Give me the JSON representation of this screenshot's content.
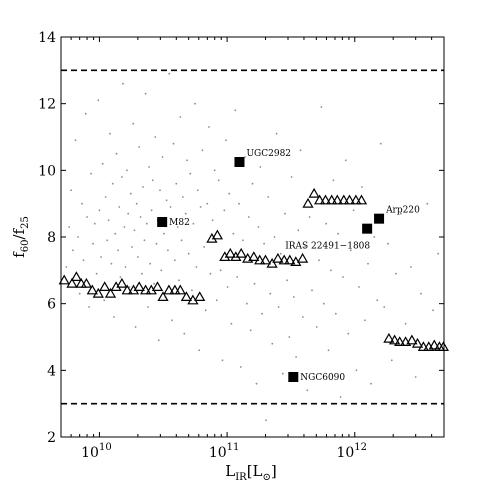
{
  "chart_data": {
    "type": "scatter",
    "title": "",
    "xlabel": {
      "main": "L",
      "sub": "IR",
      "tail": "[L",
      "sun": "⊙",
      "end": "]"
    },
    "ylabel": {
      "f1": "f",
      "s1": "60",
      "slash": "/f",
      "s2": "25"
    },
    "xscale": "log",
    "xlim": [
      5000000000.0,
      5000000000000.0
    ],
    "ylim": [
      2,
      14
    ],
    "x_ticks": [
      {
        "value": 10000000000.0,
        "base": "10",
        "exp": "10"
      },
      {
        "value": 100000000000.0,
        "base": "10",
        "exp": "11"
      },
      {
        "value": 1000000000000.0,
        "base": "10",
        "exp": "12"
      }
    ],
    "y_ticks": [
      {
        "value": 2,
        "label": "2"
      },
      {
        "value": 4,
        "label": "4"
      },
      {
        "value": 6,
        "label": "6"
      },
      {
        "value": 8,
        "label": "8"
      },
      {
        "value": 10,
        "label": "10"
      },
      {
        "value": 12,
        "label": "12"
      },
      {
        "value": 14,
        "label": "14"
      }
    ],
    "hlines": [
      3,
      13
    ],
    "grid": false,
    "labeled_points": [
      {
        "name": "M82",
        "x": 31000000000.0,
        "y": 8.45,
        "label_pos": "right"
      },
      {
        "name": "UGC2982",
        "x": 125000000000.0,
        "y": 10.25,
        "label_pos": "upper-right"
      },
      {
        "name": "Arp220",
        "x": 1550000000000.0,
        "y": 8.55,
        "label_pos": "upper-right"
      },
      {
        "name": "IRAS 22491−1808",
        "x": 1250000000000.0,
        "y": 8.25,
        "label_pos": "lower-left"
      },
      {
        "name": "NGC6090",
        "x": 330000000000.0,
        "y": 3.8,
        "label_pos": "right"
      }
    ],
    "triangle_series": [
      {
        "x": 5300000000.0,
        "y": 6.7
      },
      {
        "x": 6100000000.0,
        "y": 6.6
      },
      {
        "x": 6600000000.0,
        "y": 6.8
      },
      {
        "x": 7200000000.0,
        "y": 6.6
      },
      {
        "x": 7900000000.0,
        "y": 6.6
      },
      {
        "x": 8800000000.0,
        "y": 6.4
      },
      {
        "x": 9800000000.0,
        "y": 6.3
      },
      {
        "x": 11000000000.0,
        "y": 6.5
      },
      {
        "x": 12200000000.0,
        "y": 6.3
      },
      {
        "x": 13500000000.0,
        "y": 6.5
      },
      {
        "x": 15000000000.0,
        "y": 6.6
      },
      {
        "x": 16500000000.0,
        "y": 6.4
      },
      {
        "x": 18500000000.0,
        "y": 6.4
      },
      {
        "x": 20500000000.0,
        "y": 6.5
      },
      {
        "x": 23000000000.0,
        "y": 6.4
      },
      {
        "x": 25500000000.0,
        "y": 6.4
      },
      {
        "x": 28500000000.0,
        "y": 6.5
      },
      {
        "x": 31500000000.0,
        "y": 6.2
      },
      {
        "x": 35000000000.0,
        "y": 6.4
      },
      {
        "x": 39000000000.0,
        "y": 6.4
      },
      {
        "x": 43000000000.0,
        "y": 6.4
      },
      {
        "x": 48000000000.0,
        "y": 6.2
      },
      {
        "x": 54000000000.0,
        "y": 6.1
      },
      {
        "x": 61000000000.0,
        "y": 6.2
      },
      {
        "x": 76000000000.0,
        "y": 7.95
      },
      {
        "x": 84000000000.0,
        "y": 8.05
      },
      {
        "x": 96000000000.0,
        "y": 7.4
      },
      {
        "x": 106000000000.0,
        "y": 7.5
      },
      {
        "x": 117000000000.0,
        "y": 7.4
      },
      {
        "x": 129000000000.0,
        "y": 7.5
      },
      {
        "x": 145000000000.0,
        "y": 7.35
      },
      {
        "x": 162000000000.0,
        "y": 7.4
      },
      {
        "x": 180000000000.0,
        "y": 7.3
      },
      {
        "x": 200000000000.0,
        "y": 7.3
      },
      {
        "x": 225000000000.0,
        "y": 7.2
      },
      {
        "x": 250000000000.0,
        "y": 7.35
      },
      {
        "x": 280000000000.0,
        "y": 7.3
      },
      {
        "x": 310000000000.0,
        "y": 7.3
      },
      {
        "x": 345000000000.0,
        "y": 7.25
      },
      {
        "x": 390000000000.0,
        "y": 7.35
      },
      {
        "x": 430000000000.0,
        "y": 9.0
      },
      {
        "x": 480000000000.0,
        "y": 9.3
      },
      {
        "x": 530000000000.0,
        "y": 9.1
      },
      {
        "x": 590000000000.0,
        "y": 9.1
      },
      {
        "x": 660000000000.0,
        "y": 9.1
      },
      {
        "x": 730000000000.0,
        "y": 9.1
      },
      {
        "x": 820000000000.0,
        "y": 9.1
      },
      {
        "x": 910000000000.0,
        "y": 9.1
      },
      {
        "x": 1020000000000.0,
        "y": 9.1
      },
      {
        "x": 1130000000000.0,
        "y": 9.1
      },
      {
        "x": 1850000000000.0,
        "y": 4.95
      },
      {
        "x": 2050000000000.0,
        "y": 4.9
      },
      {
        "x": 2250000000000.0,
        "y": 4.85
      },
      {
        "x": 2500000000000.0,
        "y": 4.85
      },
      {
        "x": 2800000000000.0,
        "y": 4.9
      },
      {
        "x": 3100000000000.0,
        "y": 4.8
      },
      {
        "x": 3450000000000.0,
        "y": 4.7
      },
      {
        "x": 3800000000000.0,
        "y": 4.7
      },
      {
        "x": 4200000000000.0,
        "y": 4.75
      },
      {
        "x": 4600000000000.0,
        "y": 4.7
      },
      {
        "x": 4950000000000.0,
        "y": 4.7
      }
    ],
    "gray_points": [
      [
        5500000000.0,
        7.1
      ],
      [
        5800000000.0,
        8.3
      ],
      [
        6000000000.0,
        9.4
      ],
      [
        6200000000.0,
        7.6
      ],
      [
        6500000000.0,
        10.9
      ],
      [
        6800000000.0,
        8.0
      ],
      [
        7000000000.0,
        6.3
      ],
      [
        7300000000.0,
        9.0
      ],
      [
        7500000000.0,
        7.3
      ],
      [
        7800000000.0,
        11.7
      ],
      [
        8000000000.0,
        8.6
      ],
      [
        8300000000.0,
        5.9
      ],
      [
        8600000000.0,
        9.9
      ],
      [
        8900000000.0,
        7.8
      ],
      [
        9200000000.0,
        8.4
      ],
      [
        9500000000.0,
        6.9
      ],
      [
        9800000000.0,
        12.1
      ],
      [
        10000000000.0,
        8.8
      ],
      [
        10300000000.0,
        7.4
      ],
      [
        10600000000.0,
        10.2
      ],
      [
        10900000000.0,
        6.1
      ],
      [
        11200000000.0,
        9.2
      ],
      [
        11500000000.0,
        7.9
      ],
      [
        11800000000.0,
        8.5
      ],
      [
        12100000000.0,
        11.1
      ],
      [
        12400000000.0,
        7.2
      ],
      [
        12700000000.0,
        9.6
      ],
      [
        13000000000.0,
        5.6
      ],
      [
        13300000000.0,
        8.1
      ],
      [
        13600000000.0,
        10.5
      ],
      [
        14000000000.0,
        7.6
      ],
      [
        14300000000.0,
        8.9
      ],
      [
        14600000000.0,
        6.8
      ],
      [
        15000000000.0,
        9.8
      ],
      [
        15300000000.0,
        12.6
      ],
      [
        15700000000.0,
        8.3
      ],
      [
        16000000000.0,
        7.1
      ],
      [
        16400000000.0,
        10.0
      ],
      [
        16800000000.0,
        8.7
      ],
      [
        17200000000.0,
        6.5
      ],
      [
        17600000000.0,
        9.3
      ],
      [
        18000000000.0,
        7.7
      ],
      [
        18400000000.0,
        11.4
      ],
      [
        18800000000.0,
        8.2
      ],
      [
        19200000000.0,
        5.3
      ],
      [
        19600000000.0,
        9.0
      ],
      [
        20000000000.0,
        7.4
      ],
      [
        20500000000.0,
        10.7
      ],
      [
        21000000000.0,
        8.6
      ],
      [
        21500000000.0,
        6.9
      ],
      [
        22000000000.0,
        9.5
      ],
      [
        22500000000.0,
        7.9
      ],
      [
        23000000000.0,
        12.3
      ],
      [
        23500000000.0,
        8.4
      ],
      [
        24000000000.0,
        5.9
      ],
      [
        24500000000.0,
        10.1
      ],
      [
        25000000000.0,
        7.2
      ],
      [
        25600000000.0,
        8.8
      ],
      [
        26200000000.0,
        9.7
      ],
      [
        26800000000.0,
        6.6
      ],
      [
        27400000000.0,
        11.0
      ],
      [
        28000000000.0,
        7.8
      ],
      [
        28600000000.0,
        8.5
      ],
      [
        29200000000.0,
        4.9
      ],
      [
        29800000000.0,
        9.4
      ],
      [
        30500000000.0,
        7.0
      ],
      [
        31200000000.0,
        10.4
      ],
      [
        32000000000.0,
        8.1
      ],
      [
        32800000000.0,
        6.2
      ],
      [
        33600000000.0,
        9.1
      ],
      [
        34400000000.0,
        7.6
      ],
      [
        35200000000.0,
        12.9
      ],
      [
        36000000000.0,
        8.9
      ],
      [
        37000000000.0,
        5.5
      ],
      [
        38000000000.0,
        10.8
      ],
      [
        39000000000.0,
        7.3
      ],
      [
        40000000000.0,
        9.6
      ],
      [
        41000000000.0,
        8.3
      ],
      [
        42000000000.0,
        6.7
      ],
      [
        43000000000.0,
        11.6
      ],
      [
        44000000000.0,
        7.9
      ],
      [
        45000000000.0,
        9.2
      ],
      [
        46200000000.0,
        5.1
      ],
      [
        47400000000.0,
        8.7
      ],
      [
        48600000000.0,
        10.3
      ],
      [
        50000000000.0,
        7.5
      ],
      [
        51500000000.0,
        9.9
      ],
      [
        53000000000.0,
        6.4
      ],
      [
        54500000000.0,
        8.4
      ],
      [
        56000000000.0,
        12.0
      ],
      [
        57500000000.0,
        7.1
      ],
      [
        59000000000.0,
        9.4
      ],
      [
        60500000000.0,
        4.6
      ],
      [
        62000000000.0,
        8.9
      ],
      [
        64000000000.0,
        10.6
      ],
      [
        66000000000.0,
        7.7
      ],
      [
        68000000000.0,
        5.8
      ],
      [
        70000000000.0,
        9.0
      ],
      [
        72000000000.0,
        11.3
      ],
      [
        74000000000.0,
        6.9
      ],
      [
        77000000000.0,
        8.5
      ],
      [
        80000000000.0,
        10.0
      ],
      [
        83000000000.0,
        6.1
      ],
      [
        86000000000.0,
        9.7
      ],
      [
        89000000000.0,
        7.0
      ],
      [
        92000000000.0,
        4.3
      ],
      [
        95000000000.0,
        8.8
      ],
      [
        98000000000.0,
        10.9
      ],
      [
        101000000000.0,
        6.5
      ],
      [
        104000000000.0,
        9.3
      ],
      [
        108000000000.0,
        5.4
      ],
      [
        112000000000.0,
        8.1
      ],
      [
        116000000000.0,
        11.8
      ],
      [
        120000000000.0,
        6.8
      ],
      [
        124000000000.0,
        9.0
      ],
      [
        128000000000.0,
        4.1
      ],
      [
        133000000000.0,
        7.9
      ],
      [
        138000000000.0,
        10.4
      ],
      [
        143000000000.0,
        6.0
      ],
      [
        148000000000.0,
        8.6
      ],
      [
        153000000000.0,
        5.2
      ],
      [
        158000000000.0,
        9.6
      ],
      [
        164000000000.0,
        6.6
      ],
      [
        170000000000.0,
        3.6
      ],
      [
        176000000000.0,
        8.3
      ],
      [
        182000000000.0,
        10.1
      ],
      [
        188000000000.0,
        5.7
      ],
      [
        195000000000.0,
        7.8
      ],
      [
        202000000000.0,
        2.5
      ],
      [
        210000000000.0,
        9.2
      ],
      [
        218000000000.0,
        6.3
      ],
      [
        226000000000.0,
        4.8
      ],
      [
        235000000000.0,
        8.0
      ],
      [
        244000000000.0,
        11.1
      ],
      [
        253000000000.0,
        5.9
      ],
      [
        263000000000.0,
        7.5
      ],
      [
        273000000000.0,
        3.9
      ],
      [
        284000000000.0,
        8.7
      ],
      [
        295000000000.0,
        6.7
      ],
      [
        307000000000.0,
        5.0
      ],
      [
        320000000000.0,
        9.8
      ],
      [
        333000000000.0,
        6.2
      ],
      [
        347000000000.0,
        4.4
      ],
      [
        361000000000.0,
        8.2
      ],
      [
        376000000000.0,
        10.6
      ],
      [
        392000000000.0,
        5.6
      ],
      [
        408000000000.0,
        7.7
      ],
      [
        425000000000.0,
        3.4
      ],
      [
        443000000000.0,
        8.6
      ],
      [
        462000000000.0,
        6.4
      ],
      [
        482000000000.0,
        9.4
      ],
      [
        503000000000.0,
        5.3
      ],
      [
        525000000000.0,
        7.3
      ],
      [
        548000000000.0,
        11.9
      ],
      [
        572000000000.0,
        6.0
      ],
      [
        597000000000.0,
        8.4
      ],
      [
        623000000000.0,
        4.6
      ],
      [
        650000000000.0,
        7.0
      ],
      [
        680000000000.0,
        9.7
      ],
      [
        710000000000.0,
        5.7
      ],
      [
        740000000000.0,
        8.1
      ],
      [
        775000000000.0,
        3.2
      ],
      [
        810000000000.0,
        6.8
      ],
      [
        850000000000.0,
        10.3
      ],
      [
        890000000000.0,
        5.1
      ],
      [
        930000000000.0,
        7.6
      ],
      [
        980000000000.0,
        8.8
      ],
      [
        1030000000000.0,
        4.0
      ],
      [
        1080000000000.0,
        6.5
      ],
      [
        1140000000000.0,
        9.5
      ],
      [
        1200000000000.0,
        5.5
      ],
      [
        1270000000000.0,
        7.2
      ],
      [
        1340000000000.0,
        3.6
      ],
      [
        1420000000000.0,
        8.0
      ],
      [
        1500000000000.0,
        6.1
      ],
      [
        1600000000000.0,
        10.8
      ],
      [
        1700000000000.0,
        5.9
      ],
      [
        1820000000000.0,
        7.8
      ],
      [
        1950000000000.0,
        4.3
      ],
      [
        2100000000000.0,
        6.9
      ],
      [
        2300000000000.0,
        8.7
      ],
      [
        2500000000000.0,
        5.4
      ],
      [
        2750000000000.0,
        7.1
      ],
      [
        3000000000000.0,
        3.8
      ],
      [
        3300000000000.0,
        6.3
      ],
      [
        3700000000000.0,
        9.0
      ],
      [
        4100000000000.0,
        5.8
      ],
      [
        4500000000000.0,
        7.5
      ]
    ]
  }
}
